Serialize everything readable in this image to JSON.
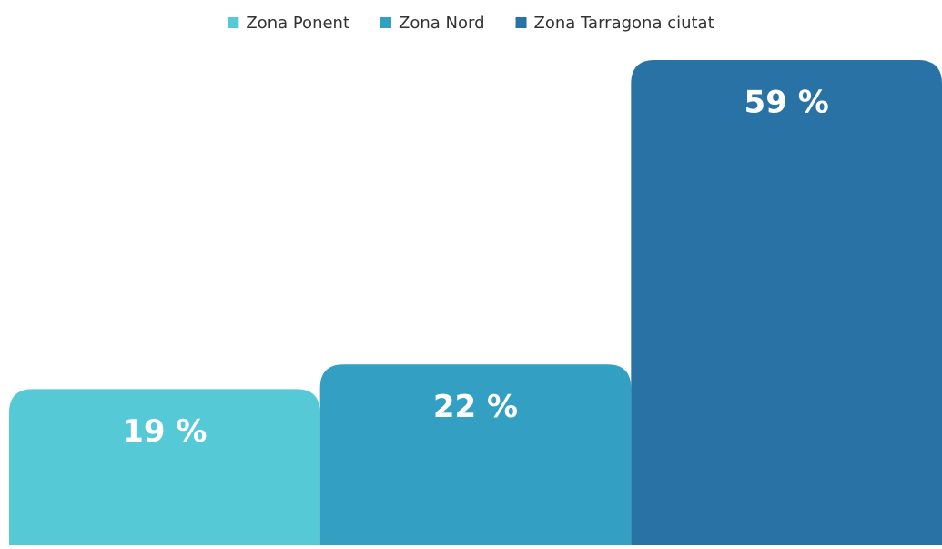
{
  "chart_data": {
    "type": "bar",
    "categories": [
      null
    ],
    "series": [
      {
        "name": "Zona Ponent",
        "color": "#55c9d6",
        "values": [
          19
        ],
        "value_labels": [
          "19 %"
        ]
      },
      {
        "name": "Zona Nord",
        "color": "#339fc3",
        "values": [
          22
        ],
        "value_labels": [
          "22 %"
        ]
      },
      {
        "name": "Zona Tarragona ciutat",
        "color": "#2872a5",
        "values": [
          59
        ],
        "value_labels": [
          "59 %"
        ]
      }
    ],
    "ylim": [
      0,
      60
    ],
    "legend": "top"
  }
}
